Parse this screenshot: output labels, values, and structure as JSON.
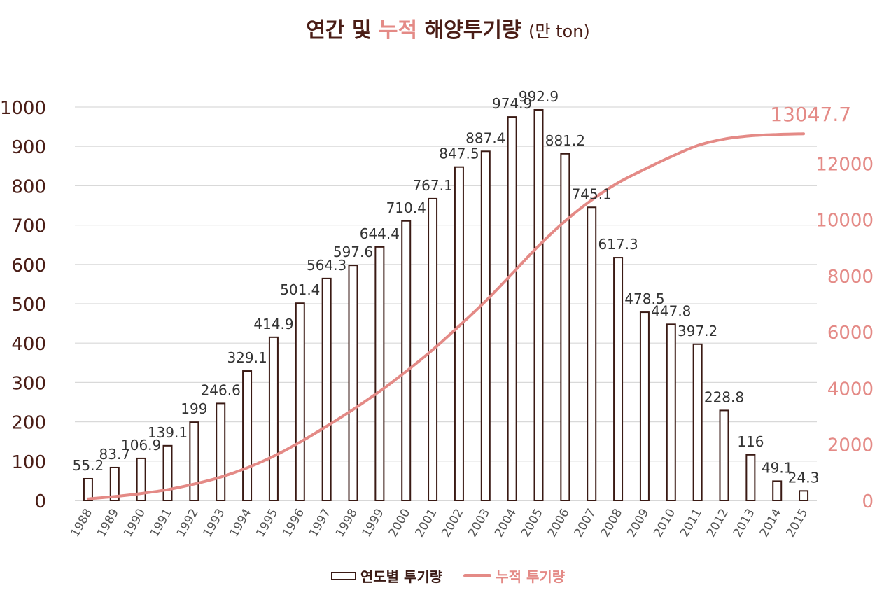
{
  "title": {
    "part1": "연간",
    "part2": "및",
    "part3": "누적",
    "part4": "해양투기량",
    "unit": "(만 ton)"
  },
  "colors": {
    "bar_stroke": "#3a1a14",
    "line": "#e48a86",
    "left_axis_text": "#4a1d16",
    "right_axis_text": "#e48a86",
    "grid": "#d9d9d9"
  },
  "legend": {
    "bar_label": "연도별 투기량",
    "line_label": "누적 투기량"
  },
  "chart_data": {
    "type": "bar+line",
    "categories": [
      "1988",
      "1989",
      "1990",
      "1991",
      "1992",
      "1993",
      "1994",
      "1995",
      "1996",
      "1997",
      "1998",
      "1999",
      "2000",
      "2001",
      "2002",
      "2003",
      "2004",
      "2005",
      "2006",
      "2007",
      "2008",
      "2009",
      "2010",
      "2011",
      "2012",
      "2013",
      "2014",
      "2015"
    ],
    "series": [
      {
        "name": "연도별 투기량",
        "type": "bar",
        "axis": "left",
        "values": [
          55.2,
          83.7,
          106.9,
          139.1,
          199,
          246.6,
          329.1,
          414.9,
          501.4,
          564.3,
          597.6,
          644.4,
          710.4,
          767.1,
          847.5,
          887.4,
          974.9,
          992.9,
          881.2,
          745.1,
          617.3,
          478.5,
          447.8,
          397.2,
          228.8,
          116,
          49.1,
          24.3
        ],
        "labels": [
          "55.2",
          "83.7",
          "106.9",
          "139.1",
          "199",
          "246.6",
          "329.1",
          "414.9",
          "501.4",
          "564.3",
          "597.6",
          "644.4",
          "710.4",
          "767.1",
          "847.5",
          "887.4",
          "974.9",
          "992.9",
          "881.2",
          "745.1",
          "617.3",
          "478.5",
          "447.8",
          "397.2",
          "228.8",
          "116",
          "49.1",
          "24.3"
        ]
      },
      {
        "name": "누적 투기량",
        "type": "line",
        "axis": "right",
        "values": [
          55.2,
          138.9,
          245.8,
          384.9,
          583.9,
          830.5,
          1159.6,
          1574.5,
          2075.9,
          2640.2,
          3237.8,
          3882.2,
          4592.6,
          5359.7,
          6207.2,
          7094.6,
          8069.5,
          9062.4,
          9943.6,
          10688.7,
          11306,
          11784.5,
          12232.3,
          12629.5,
          12858.3,
          12974.3,
          13023.4,
          13047.7
        ],
        "end_label": "13047.7"
      }
    ],
    "left_axis": {
      "min": 0,
      "max": 1000,
      "ticks": [
        "0",
        "100",
        "200",
        "300",
        "400",
        "500",
        "600",
        "700",
        "800",
        "900",
        "1000"
      ]
    },
    "right_axis": {
      "min": 0,
      "max": 14000,
      "ticks": [
        "0",
        "2000",
        "4000",
        "6000",
        "8000",
        "10000",
        "12000"
      ]
    },
    "grid": true,
    "legend_position": "bottom"
  }
}
